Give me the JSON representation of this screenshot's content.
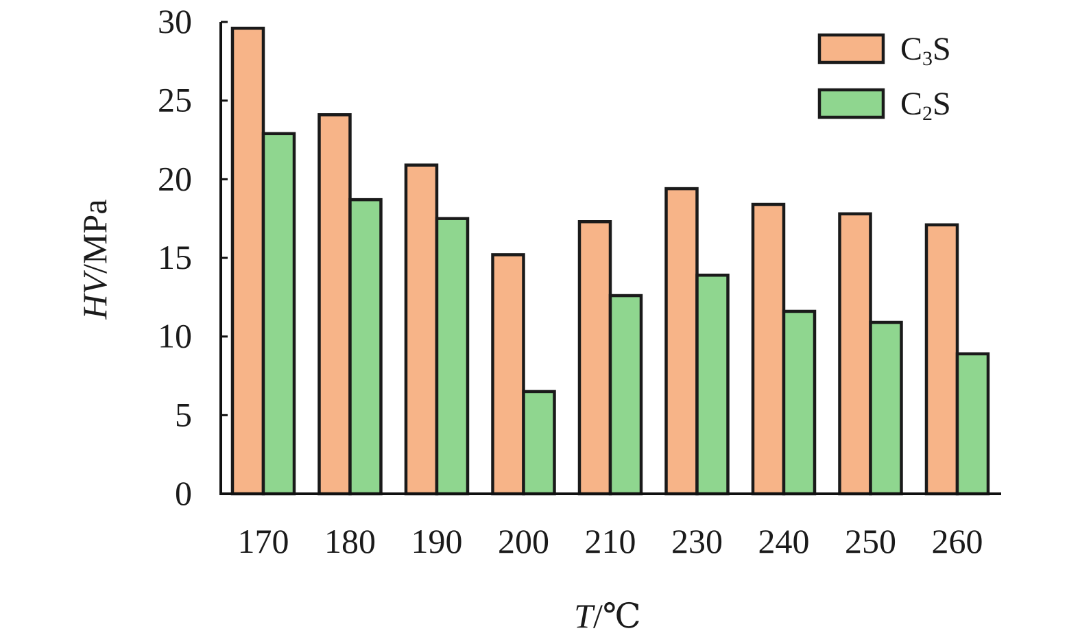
{
  "chart_data": {
    "type": "bar",
    "title": "",
    "categories": [
      "170",
      "180",
      "190",
      "200",
      "210",
      "230",
      "240",
      "250",
      "260"
    ],
    "series": [
      {
        "name": "C3S",
        "label_main": "C",
        "label_sub": "3",
        "label_end": "S",
        "color": "#f7b488",
        "values": [
          29.6,
          24.1,
          20.9,
          15.2,
          17.3,
          19.4,
          18.4,
          17.8,
          17.1
        ]
      },
      {
        "name": "C2S",
        "label_main": "C",
        "label_sub": "2",
        "label_end": "S",
        "color": "#8fd68f",
        "values": [
          22.9,
          18.7,
          17.5,
          6.5,
          12.6,
          13.9,
          11.6,
          10.9,
          8.9
        ]
      }
    ],
    "xlabel_italic": "T",
    "xlabel_rest": "/℃",
    "ylabel_italic": "HV",
    "ylabel_rest": "/MPa",
    "ylim": [
      0,
      30
    ],
    "yticks": [
      "0",
      "5",
      "10",
      "15",
      "20",
      "25",
      "30"
    ],
    "grid": false,
    "legend_position": "top-right"
  }
}
